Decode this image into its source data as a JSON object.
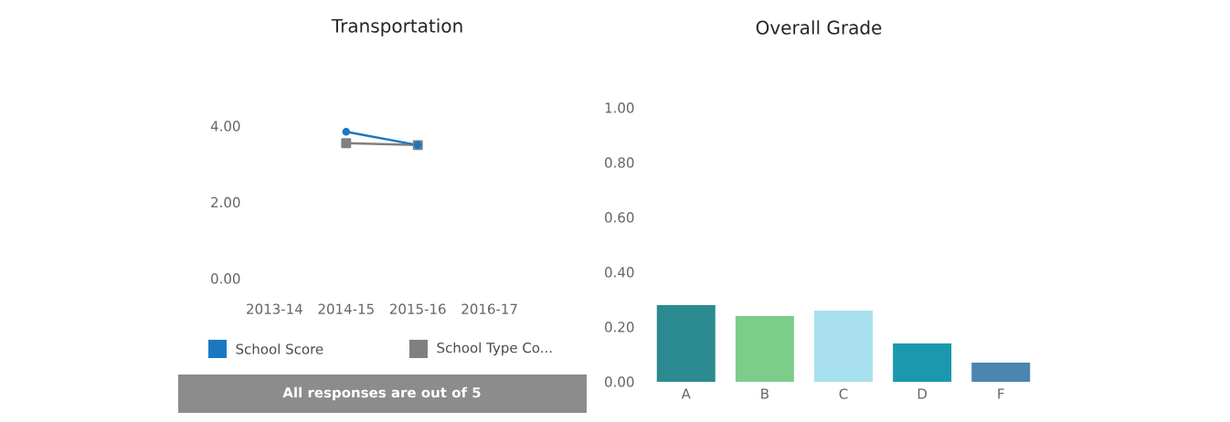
{
  "chart_data": [
    {
      "type": "line",
      "title": "Transportation",
      "categories": [
        "2013-14",
        "2014-15",
        "2015-16",
        "2016-17"
      ],
      "series": [
        {
          "name": "School Score",
          "color": "#1a78c2",
          "values": [
            null,
            3.85,
            3.5,
            null
          ],
          "marker": "circle"
        },
        {
          "name": "School Type Co...",
          "color": "#808080",
          "values": [
            null,
            3.55,
            3.5,
            null
          ],
          "marker": "square"
        }
      ],
      "ylim": [
        0,
        4
      ],
      "yticks": [
        {
          "value": 0,
          "label": "0.00"
        },
        {
          "value": 2,
          "label": "2.00"
        },
        {
          "value": 4,
          "label": "4.00"
        }
      ],
      "legend": "bottom",
      "line_style": "solid",
      "annotations": [
        "All responses are out of 5"
      ]
    },
    {
      "type": "bar",
      "title": "Overall Grade",
      "categories": [
        "A",
        "B",
        "C",
        "D",
        "F"
      ],
      "values": [
        0.28,
        0.24,
        0.26,
        0.14,
        0.07
      ],
      "colors": [
        "#2a8a8f",
        "#7ccc8a",
        "#a8e0f0",
        "#1b98ad",
        "#4a86b0"
      ],
      "ylim": [
        0,
        1
      ],
      "yticks": [
        {
          "value": 0,
          "label": "0.00"
        },
        {
          "value": 0.2,
          "label": "0.20"
        },
        {
          "value": 0.4,
          "label": "0.40"
        },
        {
          "value": 0.6,
          "label": "0.60"
        },
        {
          "value": 0.8,
          "label": "0.80"
        },
        {
          "value": 1,
          "label": "1.00"
        }
      ]
    }
  ]
}
